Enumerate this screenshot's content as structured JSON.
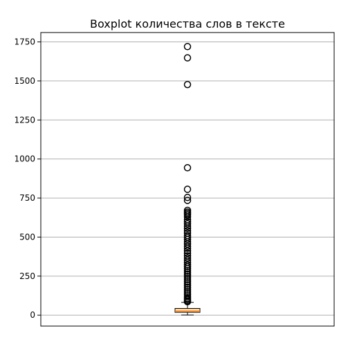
{
  "chart_data": {
    "type": "boxplot",
    "title": "Boxplot количества слов в тексте",
    "xlabel": "",
    "ylabel": "",
    "ylim": [
      -70,
      1810
    ],
    "yticks": [
      0,
      250,
      500,
      750,
      1000,
      1250,
      1500,
      1750
    ],
    "grid": "y",
    "box": {
      "whisker_low": 1,
      "q1": 18,
      "median": 26,
      "q3": 43,
      "whisker_high": 82
    },
    "outliers": [
      1720,
      1648,
      1477,
      944,
      806,
      754,
      735,
      671,
      660,
      651,
      642,
      630,
      611,
      598,
      585,
      570,
      556,
      540,
      525,
      510,
      498,
      485,
      470,
      456,
      441,
      428,
      412,
      396,
      380,
      366,
      352,
      338,
      322,
      310,
      298,
      286,
      274,
      262,
      250,
      238,
      226,
      214,
      202,
      190,
      178,
      166,
      154,
      142,
      130,
      118,
      108,
      100,
      92,
      86
    ],
    "colors": {
      "box_face": "#fdd9a8",
      "median": "#ff7f0e",
      "grid": "#b0b0b0"
    }
  }
}
